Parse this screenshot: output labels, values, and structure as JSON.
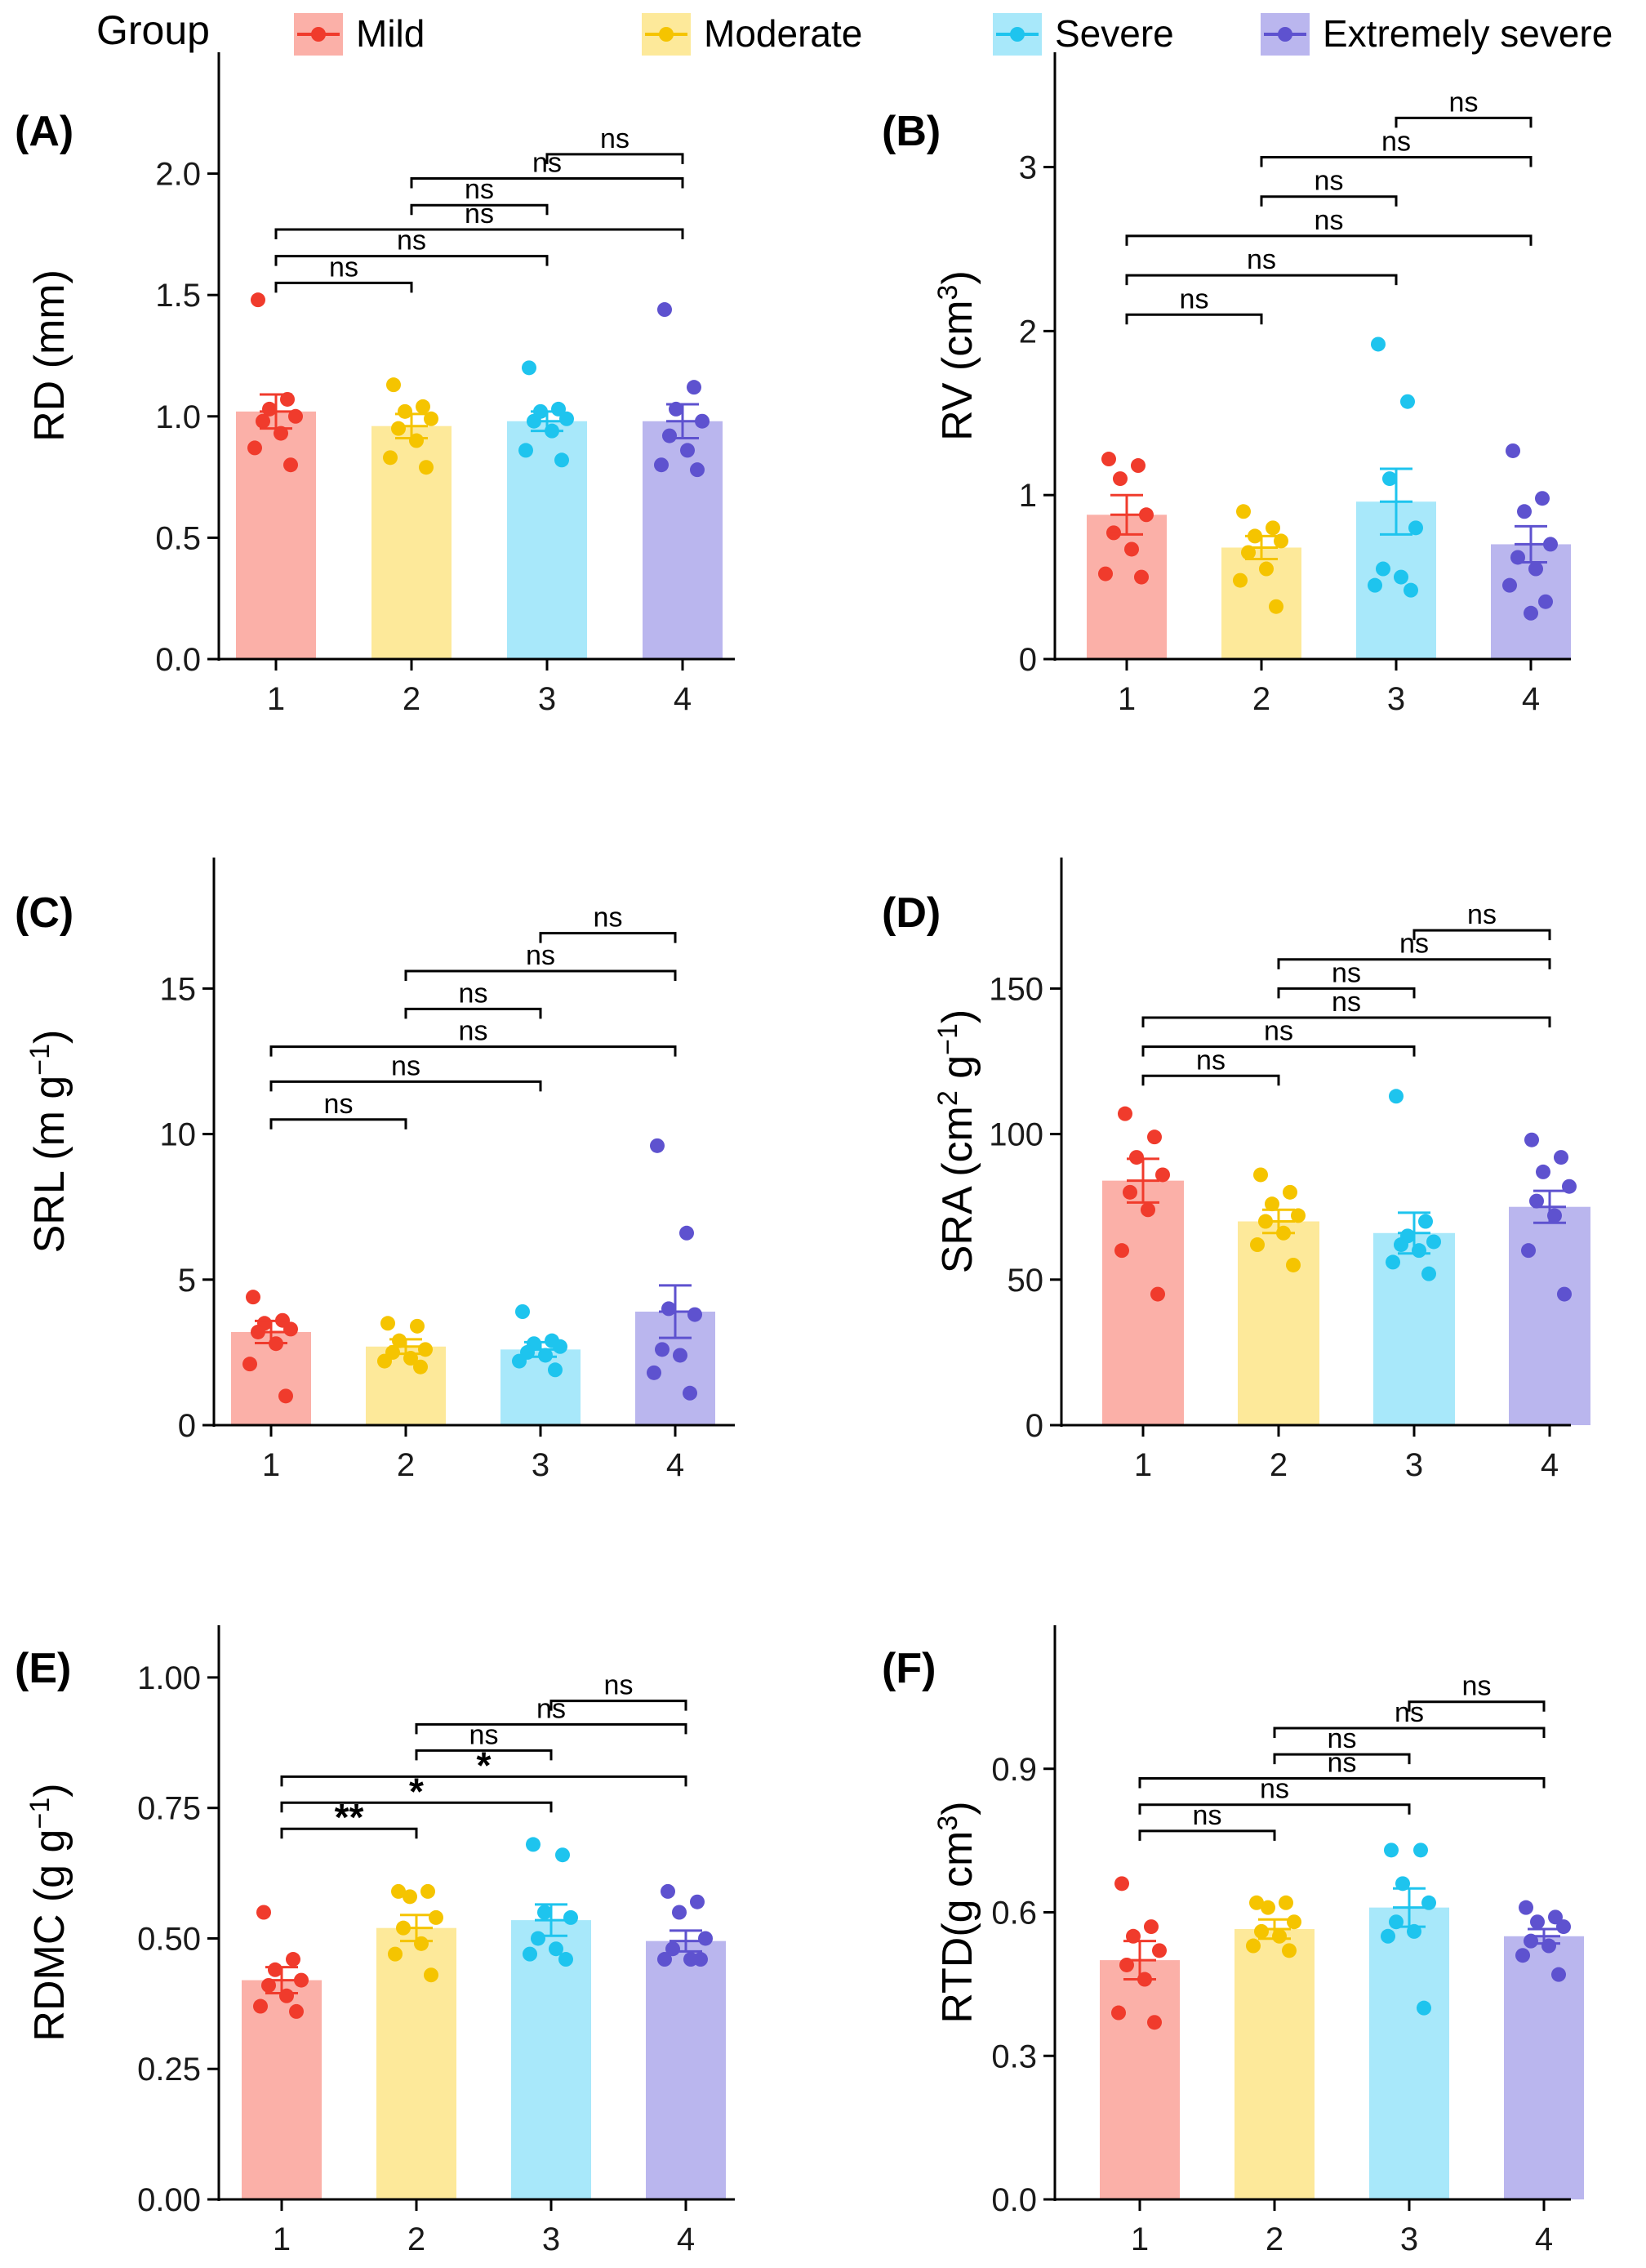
{
  "legend": {
    "title": "Group",
    "items": [
      {
        "label": "Mild",
        "color": "#f03b2c",
        "fill": "#fbb0a8"
      },
      {
        "label": "Moderate",
        "color": "#f5c400",
        "fill": "#fde99a"
      },
      {
        "label": "Severe",
        "color": "#1ec4ee",
        "fill": "#a8e8fa"
      },
      {
        "label": "Extremely severe",
        "color": "#5e52cf",
        "fill": "#bab6ee"
      }
    ]
  },
  "chart_data": [
    {
      "panel": "(A)",
      "type": "bar",
      "ylabel": "RD (mm)",
      "ylabel_sup": "",
      "ylabel_tail": "",
      "categories": [
        "1",
        "2",
        "3",
        "4"
      ],
      "ylim": [
        0,
        2.5
      ],
      "yticks": [
        0,
        0.5,
        1,
        1.5,
        2
      ],
      "ytick_labels": [
        "0.0",
        "0.5",
        "1.0",
        "1.5",
        "2.0"
      ],
      "means": [
        1.02,
        0.96,
        0.98,
        0.98
      ],
      "se": [
        0.07,
        0.05,
        0.04,
        0.07
      ],
      "points": [
        [
          1.48,
          1.07,
          1.03,
          1.0,
          0.98,
          0.93,
          0.87,
          0.8
        ],
        [
          1.13,
          1.04,
          1.02,
          0.99,
          0.95,
          0.9,
          0.83,
          0.79
        ],
        [
          1.2,
          1.03,
          1.02,
          0.99,
          0.98,
          0.94,
          0.86,
          0.82
        ],
        [
          1.44,
          1.12,
          1.03,
          0.98,
          0.92,
          0.86,
          0.8,
          0.78
        ]
      ],
      "comparisons": [
        {
          "from": 1,
          "to": 2,
          "label": "ns",
          "y": 1.55
        },
        {
          "from": 1,
          "to": 3,
          "label": "ns",
          "y": 1.66
        },
        {
          "from": 1,
          "to": 4,
          "label": "ns",
          "y": 1.77
        },
        {
          "from": 2,
          "to": 3,
          "label": "ns",
          "y": 1.87
        },
        {
          "from": 2,
          "to": 4,
          "label": "ns",
          "y": 1.98
        },
        {
          "from": 3,
          "to": 4,
          "label": "ns",
          "y": 2.08
        }
      ]
    },
    {
      "panel": "(B)",
      "type": "bar",
      "ylabel": "RV (cm",
      "ylabel_sup": "3",
      "ylabel_tail": ")",
      "categories": [
        "1",
        "2",
        "3",
        "4"
      ],
      "ylim": [
        0,
        3.7
      ],
      "yticks": [
        0,
        1,
        2,
        3
      ],
      "ytick_labels": [
        "0",
        "1",
        "2",
        "3"
      ],
      "means": [
        0.88,
        0.68,
        0.96,
        0.7
      ],
      "se": [
        0.12,
        0.07,
        0.2,
        0.11
      ],
      "points": [
        [
          1.22,
          1.18,
          1.1,
          0.88,
          0.77,
          0.67,
          0.52,
          0.5
        ],
        [
          0.9,
          0.8,
          0.75,
          0.72,
          0.65,
          0.55,
          0.48,
          0.32
        ],
        [
          1.92,
          1.57,
          1.1,
          0.8,
          0.55,
          0.5,
          0.45,
          0.42
        ],
        [
          1.27,
          0.98,
          0.9,
          0.7,
          0.62,
          0.55,
          0.45,
          0.35,
          0.28
        ]
      ],
      "comparisons": [
        {
          "from": 1,
          "to": 2,
          "label": "ns",
          "y": 2.1
        },
        {
          "from": 1,
          "to": 3,
          "label": "ns",
          "y": 2.34
        },
        {
          "from": 1,
          "to": 4,
          "label": "ns",
          "y": 2.58
        },
        {
          "from": 2,
          "to": 3,
          "label": "ns",
          "y": 2.82
        },
        {
          "from": 2,
          "to": 4,
          "label": "ns",
          "y": 3.06
        },
        {
          "from": 3,
          "to": 4,
          "label": "ns",
          "y": 3.3
        }
      ]
    },
    {
      "panel": "(C)",
      "type": "bar",
      "ylabel": "SRL (m g",
      "ylabel_sup": "−1",
      "ylabel_tail": ")",
      "categories": [
        "1",
        "2",
        "3",
        "4"
      ],
      "ylim": [
        0,
        19.5
      ],
      "yticks": [
        0,
        5,
        10,
        15
      ],
      "ytick_labels": [
        "0",
        "5",
        "10",
        "15"
      ],
      "means": [
        3.2,
        2.7,
        2.6,
        3.9
      ],
      "se": [
        0.38,
        0.25,
        0.25,
        0.9
      ],
      "points": [
        [
          4.4,
          3.6,
          3.5,
          3.3,
          3.2,
          2.8,
          2.1,
          1.0
        ],
        [
          3.5,
          3.4,
          2.9,
          2.6,
          2.5,
          2.3,
          2.2,
          2.0
        ],
        [
          3.9,
          2.9,
          2.8,
          2.7,
          2.5,
          2.4,
          2.2,
          1.9
        ],
        [
          9.6,
          6.6,
          4.0,
          3.8,
          2.6,
          2.4,
          1.8,
          1.1
        ]
      ],
      "comparisons": [
        {
          "from": 1,
          "to": 2,
          "label": "ns",
          "y": 10.5
        },
        {
          "from": 1,
          "to": 3,
          "label": "ns",
          "y": 11.8
        },
        {
          "from": 1,
          "to": 4,
          "label": "ns",
          "y": 13.0
        },
        {
          "from": 2,
          "to": 3,
          "label": "ns",
          "y": 14.3
        },
        {
          "from": 2,
          "to": 4,
          "label": "ns",
          "y": 15.6
        },
        {
          "from": 3,
          "to": 4,
          "label": "ns",
          "y": 16.9
        }
      ]
    },
    {
      "panel": "(D)",
      "type": "bar",
      "ylabel": "SRA (cm",
      "ylabel_sup": "2",
      "ylabel_tail": " g",
      "ylabel_sup2": "−1",
      "ylabel_tail2": ")",
      "categories": [
        "1",
        "2",
        "3",
        "4"
      ],
      "ylim": [
        0,
        195
      ],
      "yticks": [
        0,
        50,
        100,
        150
      ],
      "ytick_labels": [
        "0",
        "50",
        "100",
        "150"
      ],
      "means": [
        84,
        70,
        66,
        75
      ],
      "se": [
        7.5,
        4,
        7,
        5.5
      ],
      "points": [
        [
          107,
          99,
          92,
          86,
          80,
          74,
          60,
          45
        ],
        [
          86,
          80,
          76,
          72,
          70,
          66,
          62,
          55
        ],
        [
          113,
          70,
          65,
          63,
          62,
          60,
          56,
          52
        ],
        [
          98,
          92,
          87,
          82,
          77,
          72,
          60,
          45
        ]
      ],
      "comparisons": [
        {
          "from": 1,
          "to": 2,
          "label": "ns",
          "y": 120
        },
        {
          "from": 1,
          "to": 3,
          "label": "ns",
          "y": 130
        },
        {
          "from": 1,
          "to": 4,
          "label": "ns",
          "y": 140
        },
        {
          "from": 2,
          "to": 3,
          "label": "ns",
          "y": 150
        },
        {
          "from": 2,
          "to": 4,
          "label": "ns",
          "y": 160
        },
        {
          "from": 3,
          "to": 4,
          "label": "ns",
          "y": 170
        }
      ]
    },
    {
      "panel": "(E)",
      "type": "bar",
      "ylabel": "RDMC (g g",
      "ylabel_sup": "−1",
      "ylabel_tail": ")",
      "categories": [
        "1",
        "2",
        "3",
        "4"
      ],
      "ylim": [
        0,
        1.1
      ],
      "yticks": [
        0,
        0.25,
        0.5,
        0.75,
        1.0
      ],
      "ytick_labels": [
        "0.00",
        "0.25",
        "0.50",
        "0.75",
        "1.00"
      ],
      "means": [
        0.42,
        0.52,
        0.535,
        0.495
      ],
      "se": [
        0.025,
        0.025,
        0.03,
        0.02
      ],
      "points": [
        [
          0.55,
          0.46,
          0.44,
          0.42,
          0.41,
          0.39,
          0.37,
          0.36
        ],
        [
          0.59,
          0.59,
          0.58,
          0.54,
          0.52,
          0.49,
          0.47,
          0.43
        ],
        [
          0.68,
          0.66,
          0.55,
          0.54,
          0.5,
          0.48,
          0.47,
          0.46
        ],
        [
          0.59,
          0.57,
          0.55,
          0.5,
          0.48,
          0.46,
          0.46,
          0.46
        ]
      ],
      "comparisons": [
        {
          "from": 1,
          "to": 2,
          "label": "**",
          "y": 0.71
        },
        {
          "from": 1,
          "to": 3,
          "label": "*",
          "y": 0.76
        },
        {
          "from": 1,
          "to": 4,
          "label": "*",
          "y": 0.81
        },
        {
          "from": 2,
          "to": 3,
          "label": "ns",
          "y": 0.86
        },
        {
          "from": 2,
          "to": 4,
          "label": "ns",
          "y": 0.91
        },
        {
          "from": 3,
          "to": 4,
          "label": "ns",
          "y": 0.955
        }
      ]
    },
    {
      "panel": "(F)",
      "type": "bar",
      "ylabel": "RTD(g cm",
      "ylabel_sup": "3",
      "ylabel_tail": ")",
      "categories": [
        "1",
        "2",
        "3",
        "4"
      ],
      "ylim": [
        0,
        1.2
      ],
      "yticks": [
        0,
        0.3,
        0.6,
        0.9
      ],
      "ytick_labels": [
        "0.0",
        "0.3",
        "0.6",
        "0.9"
      ],
      "means": [
        0.5,
        0.565,
        0.61,
        0.55
      ],
      "se": [
        0.04,
        0.02,
        0.04,
        0.015
      ],
      "points": [
        [
          0.66,
          0.57,
          0.55,
          0.52,
          0.49,
          0.46,
          0.39,
          0.37
        ],
        [
          0.62,
          0.62,
          0.61,
          0.58,
          0.56,
          0.55,
          0.53,
          0.52
        ],
        [
          0.73,
          0.73,
          0.66,
          0.62,
          0.58,
          0.56,
          0.55,
          0.4
        ],
        [
          0.61,
          0.59,
          0.58,
          0.57,
          0.54,
          0.53,
          0.51,
          0.47
        ]
      ],
      "comparisons": [
        {
          "from": 1,
          "to": 2,
          "label": "ns",
          "y": 0.77
        },
        {
          "from": 1,
          "to": 3,
          "label": "ns",
          "y": 0.825
        },
        {
          "from": 1,
          "to": 4,
          "label": "ns",
          "y": 0.88
        },
        {
          "from": 2,
          "to": 3,
          "label": "ns",
          "y": 0.93
        },
        {
          "from": 2,
          "to": 4,
          "label": "ns",
          "y": 0.985
        },
        {
          "from": 3,
          "to": 4,
          "label": "ns",
          "y": 1.04
        }
      ]
    }
  ]
}
